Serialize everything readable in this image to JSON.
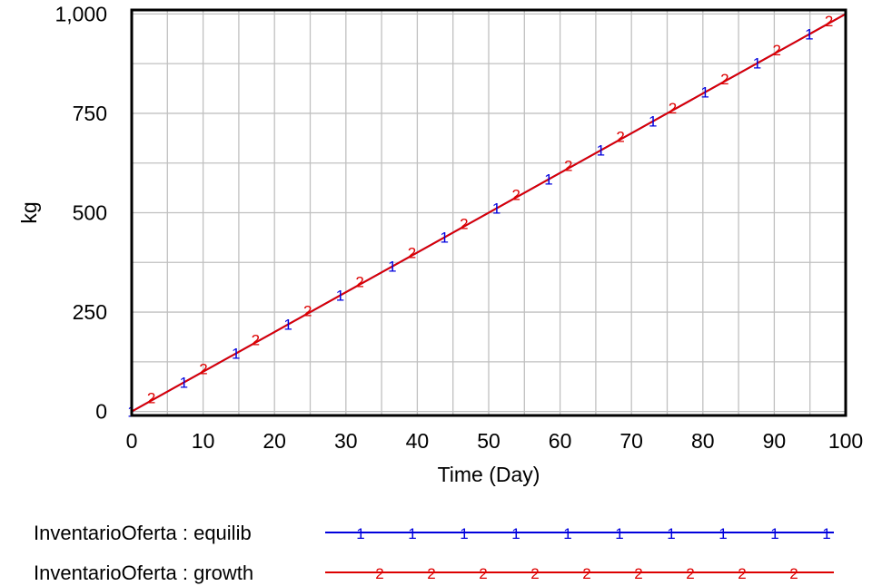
{
  "chart_data": {
    "type": "line",
    "xlabel": "Time (Day)",
    "ylabel": "kg",
    "xlim": [
      0,
      100
    ],
    "ylim": [
      -10,
      1010
    ],
    "x_ticks": [
      0,
      10,
      20,
      30,
      40,
      50,
      60,
      70,
      80,
      90,
      100
    ],
    "x_tick_labels": [
      "0",
      "10",
      "20",
      "30",
      "40",
      "50",
      "60",
      "70",
      "80",
      "90",
      "100"
    ],
    "y_ticks": [
      0,
      250,
      500,
      750,
      1000
    ],
    "y_tick_labels": [
      "0",
      "250",
      "500",
      "750",
      "1,000"
    ],
    "grid": true,
    "legend_position": "bottom",
    "series": [
      {
        "name": "InventarioOferta : equilib",
        "marker": "1",
        "color": "#0000dd",
        "x": [
          0,
          10,
          20,
          30,
          40,
          50,
          60,
          70,
          80,
          90,
          100
        ],
        "y": [
          0,
          100,
          200,
          300,
          400,
          500,
          600,
          700,
          800,
          900,
          1000
        ]
      },
      {
        "name": "InventarioOferta : growth",
        "marker": "2",
        "color": "#dd0000",
        "x": [
          0,
          10,
          20,
          30,
          40,
          50,
          60,
          70,
          80,
          90,
          100
        ],
        "y": [
          0,
          100,
          200,
          300,
          400,
          500,
          600,
          700,
          800,
          900,
          1000
        ]
      }
    ]
  }
}
